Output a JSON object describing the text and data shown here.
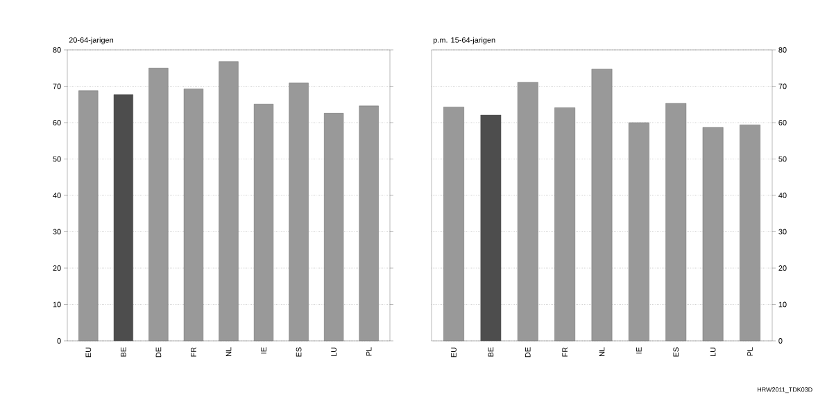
{
  "chart_data": [
    {
      "type": "bar",
      "title": "20-64-jarigen",
      "categories": [
        "EU",
        "BE",
        "DE",
        "FR",
        "NL",
        "IE",
        "ES",
        "LU",
        "PL"
      ],
      "values": [
        68.8,
        67.7,
        75.0,
        69.3,
        76.8,
        65.1,
        70.9,
        62.6,
        64.6
      ],
      "colors": [
        "#999999",
        "#4d4d4d",
        "#999999",
        "#999999",
        "#999999",
        "#999999",
        "#999999",
        "#999999",
        "#999999"
      ],
      "ylim": [
        0,
        80
      ],
      "yticks": [
        0,
        10,
        20,
        30,
        40,
        50,
        60,
        70,
        80
      ],
      "grid": "y"
    },
    {
      "type": "bar",
      "title": "p.m. 15-64-jarigen",
      "categories": [
        "EU",
        "BE",
        "DE",
        "FR",
        "NL",
        "IE",
        "ES",
        "LU",
        "PL"
      ],
      "series": [
        {
          "values": [
            64.3,
            62.1,
            71.1,
            64.1,
            74.7,
            60.0,
            65.3,
            58.7,
            59.4
          ],
          "colors": [
            "#999999",
            "#4d4d4d",
            "#999999",
            "#999999",
            "#999999",
            "#999999",
            "#999999",
            "#999999",
            "#999999"
          ],
          "axis": "y2"
        }
      ],
      "y2lim": [
        0,
        80
      ],
      "y2ticks": [
        0,
        10,
        20,
        30,
        40,
        50,
        60,
        70,
        80
      ],
      "grid": "y",
      "annotations": [
        "HRW2011_TDK03D"
      ]
    }
  ]
}
